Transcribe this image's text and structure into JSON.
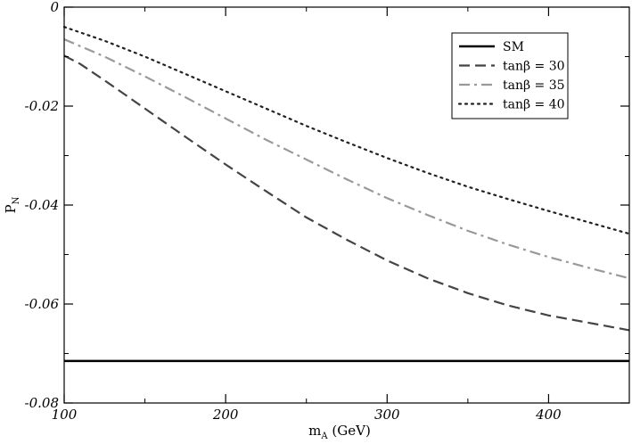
{
  "chart_data": {
    "type": "line",
    "xlabel_main": "m",
    "xlabel_sub": "A",
    "xlabel_unit": " (GeV)",
    "ylabel_main": "P",
    "ylabel_sub": "N",
    "xlim": [
      100,
      450
    ],
    "ylim": [
      -0.08,
      0
    ],
    "xticks": [
      100,
      200,
      300,
      400
    ],
    "xtick_labels": [
      "100",
      "200",
      "300",
      "400"
    ],
    "yticks": [
      0,
      -0.02,
      -0.04,
      -0.06,
      -0.08
    ],
    "ytick_labels": [
      "0",
      "-0.02",
      "-0.04",
      "-0.06",
      "-0.08"
    ],
    "grid": false,
    "legend_position": "top-right",
    "series": [
      {
        "name": "SM",
        "style": "solid",
        "color": "#000000",
        "x": [
          100,
          450
        ],
        "y": [
          -0.0715,
          -0.0715
        ]
      },
      {
        "name": "tanβ = 30",
        "style": "dashed",
        "color": "#444444",
        "x": [
          100,
          110,
          125,
          150,
          175,
          200,
          225,
          250,
          275,
          300,
          325,
          350,
          375,
          400,
          425,
          450
        ],
        "y": [
          -0.0098,
          -0.0115,
          -0.0148,
          -0.0205,
          -0.0262,
          -0.0318,
          -0.0372,
          -0.0425,
          -0.047,
          -0.0512,
          -0.0548,
          -0.0578,
          -0.0603,
          -0.0623,
          -0.0638,
          -0.0653
        ]
      },
      {
        "name": "tanβ = 35",
        "style": "dashdot",
        "color": "#999999",
        "x": [
          100,
          125,
          150,
          175,
          200,
          225,
          250,
          275,
          300,
          325,
          350,
          375,
          400,
          425,
          450
        ],
        "y": [
          -0.0065,
          -0.01,
          -0.014,
          -0.0182,
          -0.0225,
          -0.0268,
          -0.0308,
          -0.0348,
          -0.0386,
          -0.042,
          -0.0452,
          -0.048,
          -0.0505,
          -0.0527,
          -0.0548
        ]
      },
      {
        "name": "tanβ = 40",
        "style": "dotted",
        "color": "#222222",
        "x": [
          100,
          125,
          150,
          175,
          200,
          225,
          250,
          275,
          300,
          325,
          350,
          375,
          400,
          425,
          450
        ],
        "y": [
          -0.004,
          -0.0068,
          -0.01,
          -0.0135,
          -0.017,
          -0.0205,
          -0.024,
          -0.0273,
          -0.0305,
          -0.0335,
          -0.0363,
          -0.0388,
          -0.0412,
          -0.0435,
          -0.0458
        ]
      }
    ]
  }
}
